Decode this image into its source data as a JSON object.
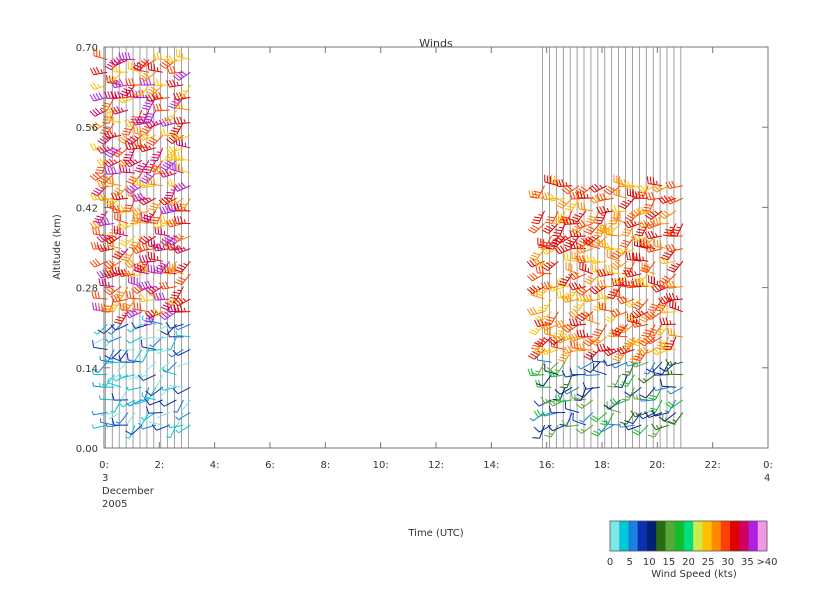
{
  "chart_data": {
    "type": "wind-barb",
    "title": "Winds",
    "xlabel": "Time (UTC)",
    "ylabel": "Altitude (km)",
    "x_ticks": [
      "0:",
      "2:",
      "4:",
      "6:",
      "8:",
      "10:",
      "12:",
      "14:",
      "16:",
      "18:",
      "20:",
      "22:",
      "0:"
    ],
    "x_tick_values": [
      0,
      2,
      4,
      6,
      8,
      10,
      12,
      14,
      16,
      18,
      20,
      22,
      24
    ],
    "xlim": [
      0,
      24
    ],
    "y_ticks": [
      "0.00",
      "0.14",
      "0.28",
      "0.42",
      "0.56",
      "0.70"
    ],
    "y_tick_values": [
      0.0,
      0.14,
      0.28,
      0.42,
      0.56,
      0.7
    ],
    "ylim": [
      0.0,
      0.7
    ],
    "date_label_start": [
      "3",
      "December",
      "2005"
    ],
    "date_label_end": "4",
    "profile_times": [
      0.05,
      0.3,
      0.55,
      0.8,
      1.05,
      1.3,
      1.55,
      1.8,
      2.05,
      2.3,
      2.55,
      2.8,
      3.05,
      15.85,
      16.1,
      16.35,
      16.6,
      16.85,
      17.1,
      17.35,
      17.6,
      17.85,
      18.1,
      18.35,
      18.6,
      18.85,
      19.1,
      19.35,
      19.6,
      19.85,
      20.1,
      20.35,
      20.6,
      20.85
    ],
    "segments": [
      {
        "time_range": [
          0.0,
          3.3
        ],
        "altitude_range": [
          0.02,
          0.7
        ],
        "speed_low_kts": [
          0,
          10
        ],
        "speed_high_kts": [
          25,
          40
        ]
      },
      {
        "time_range": [
          15.6,
          21.0
        ],
        "altitude_range": [
          0.02,
          0.48
        ],
        "speed_low_kts": [
          5,
          20
        ],
        "speed_high_kts": [
          25,
          35
        ]
      }
    ],
    "colorbar": {
      "label": "Wind Speed (kts)",
      "tick_labels": [
        "0",
        "5",
        "10",
        "15",
        "20",
        "25",
        "30",
        "35",
        ">40"
      ],
      "colors": [
        "#7fe5e5",
        "#00c8d8",
        "#1a7fe0",
        "#0a2fb0",
        "#002070",
        "#2a6a10",
        "#58a838",
        "#0fbe2a",
        "#00dd7a",
        "#c8ec48",
        "#ffc000",
        "#ff8a00",
        "#ff4000",
        "#e00000",
        "#d00060",
        "#b020e0",
        "#f098e0"
      ]
    }
  }
}
